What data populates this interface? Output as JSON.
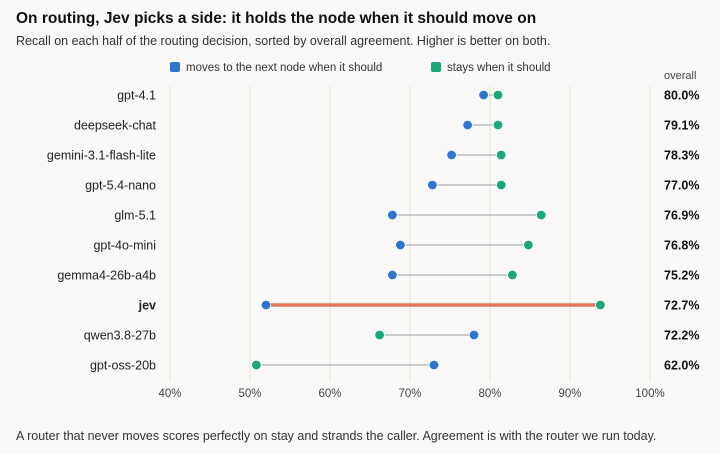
{
  "title": "On routing, Jev picks a side: it holds the node when it should move on",
  "subtitle": "Recall on each half of the routing decision, sorted by overall agreement. Higher is better on both.",
  "footnote": "A router that never moves scores perfectly on stay and strands the caller. Agreement is with the router we run today.",
  "colors": {
    "move": "#2f74d0",
    "stay": "#1aa87a",
    "connector": "#bdbdbd",
    "highlight": "#e8775a",
    "grid": "#e4e2de"
  },
  "chart_data": {
    "type": "dumbbell",
    "title": "On routing, Jev picks a side: it holds the node when it should move on",
    "subtitle": "Recall on each half of the routing decision, sorted by overall agreement. Higher is better on both.",
    "xlim": [
      40,
      100
    ],
    "x_ticks": [
      "40%",
      "50%",
      "60%",
      "70%",
      "80%",
      "90%",
      "100%"
    ],
    "x_tick_values": [
      40,
      50,
      60,
      70,
      80,
      90,
      100
    ],
    "grid": true,
    "legend_position": "top",
    "series": [
      {
        "name": "moves to the next node when it should",
        "key": "move"
      },
      {
        "name": "stays when it should",
        "key": "stay"
      }
    ],
    "overall_header": "overall",
    "highlight_category": "jev",
    "categories": [
      "gpt-4.1",
      "deepseek-chat",
      "gemini-3.1-flash-lite",
      "gpt-5.4-nano",
      "glm-5.1",
      "gpt-4o-mini",
      "gemma4-26b-a4b",
      "jev",
      "qwen3.8-27b",
      "gpt-oss-20b"
    ],
    "move": [
      79.2,
      77.2,
      75.2,
      72.8,
      67.8,
      68.8,
      67.8,
      52.0,
      78.0,
      73.0
    ],
    "stay": [
      81.0,
      81.0,
      81.4,
      81.4,
      86.4,
      84.8,
      82.8,
      93.8,
      66.2,
      50.8
    ],
    "overall": [
      "80.0%",
      "79.1%",
      "78.3%",
      "77.0%",
      "76.9%",
      "76.8%",
      "75.2%",
      "72.7%",
      "72.2%",
      "62.0%"
    ]
  }
}
